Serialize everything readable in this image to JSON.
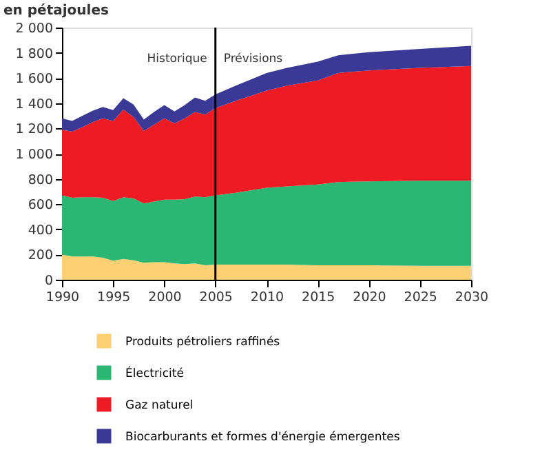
{
  "chart_data": {
    "type": "area",
    "stacked": true,
    "ylabel": "en pétajoules",
    "x": [
      1990,
      1991,
      1992,
      1993,
      1994,
      1995,
      1996,
      1997,
      1998,
      1999,
      2000,
      2001,
      2002,
      2003,
      2004,
      2005,
      2007,
      2010,
      2012,
      2015,
      2017,
      2020,
      2025,
      2030
    ],
    "series": [
      {
        "name": "Produits pétroliers raffinés",
        "color": "#fdd073",
        "values": [
          200,
          185,
          185,
          185,
          175,
          150,
          165,
          155,
          135,
          140,
          140,
          130,
          125,
          130,
          115,
          120,
          120,
          120,
          120,
          115,
          115,
          115,
          110,
          110
        ]
      },
      {
        "name": "Électricité",
        "color": "#2bb673",
        "values": [
          470,
          465,
          470,
          470,
          475,
          475,
          490,
          490,
          470,
          480,
          495,
          505,
          515,
          530,
          540,
          550,
          570,
          610,
          620,
          640,
          660,
          665,
          675,
          675
        ]
      },
      {
        "name": "Gaz naturel",
        "color": "#ed1c24",
        "values": [
          520,
          525,
          555,
          595,
          630,
          635,
          695,
          645,
          575,
          610,
          645,
          605,
          640,
          670,
          655,
          690,
          730,
          770,
          800,
          825,
          865,
          880,
          895,
          910
        ]
      },
      {
        "name": "Biocarburants et formes d'énergie émergentes",
        "color": "#3a3a96",
        "values": [
          90,
          85,
          90,
          90,
          90,
          85,
          90,
          100,
          90,
          100,
          105,
          95,
          105,
          115,
          110,
          110,
          120,
          140,
          140,
          150,
          140,
          145,
          150,
          160
        ]
      }
    ],
    "xlim": [
      1990,
      2030
    ],
    "xticks": [
      1990,
      1995,
      2000,
      2005,
      2010,
      2015,
      2020,
      2025,
      2030
    ],
    "ylim": [
      0,
      2000
    ],
    "yticks": [
      0,
      200,
      400,
      600,
      800,
      {
        "value": 1000,
        "label": "1 000"
      },
      {
        "value": 1200,
        "label": "1 200"
      },
      {
        "value": 1400,
        "label": "1 400"
      },
      {
        "value": 1600,
        "label": "1 600"
      },
      {
        "value": 1800,
        "label": "1 800"
      },
      {
        "value": 2000,
        "label": "2 000"
      }
    ],
    "ref_lines": [
      {
        "axis": "x",
        "value": 2005,
        "color": "#000000"
      }
    ],
    "annotations": [
      "Historique",
      "Prévisions"
    ],
    "grid": false,
    "legend": "bottom"
  }
}
